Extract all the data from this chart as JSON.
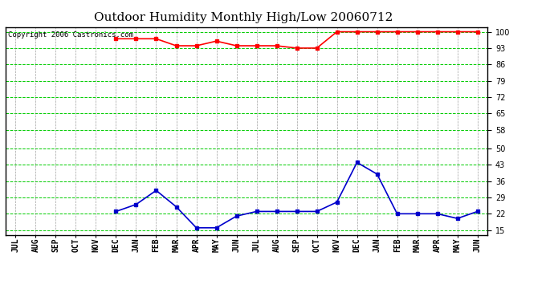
{
  "title": "Outdoor Humidity Monthly High/Low 20060712",
  "copyright": "Copyright 2006 Castronics.com",
  "x_labels": [
    "JUL",
    "AUG",
    "SEP",
    "OCT",
    "NOV",
    "DEC",
    "JAN",
    "FEB",
    "MAR",
    "APR",
    "MAY",
    "JUN",
    "JUL",
    "AUG",
    "SEP",
    "OCT",
    "NOV",
    "DEC",
    "JAN",
    "FEB",
    "MAR",
    "APR",
    "MAY",
    "JUN"
  ],
  "high_values": [
    null,
    null,
    null,
    null,
    null,
    97,
    97,
    97,
    94,
    94,
    96,
    94,
    94,
    94,
    93,
    93,
    100,
    100,
    100,
    100,
    100,
    100,
    100,
    100
  ],
  "low_values": [
    null,
    null,
    null,
    null,
    null,
    23,
    26,
    32,
    25,
    16,
    16,
    21,
    23,
    23,
    23,
    23,
    27,
    44,
    39,
    22,
    22,
    22,
    20,
    23
  ],
  "high_color": "#ff0000",
  "low_color": "#0000cc",
  "bg_color": "#ffffff",
  "plot_bg_color": "#ffffff",
  "grid_color_h": "#00cc00",
  "grid_color_v": "#888888",
  "y_ticks": [
    15,
    22,
    29,
    36,
    43,
    50,
    58,
    65,
    72,
    79,
    86,
    93,
    100
  ],
  "ylim": [
    13,
    102
  ],
  "marker": "s",
  "marker_size": 3,
  "line_width": 1.2,
  "title_fontsize": 11,
  "tick_fontsize": 7,
  "copyright_fontsize": 6.5
}
